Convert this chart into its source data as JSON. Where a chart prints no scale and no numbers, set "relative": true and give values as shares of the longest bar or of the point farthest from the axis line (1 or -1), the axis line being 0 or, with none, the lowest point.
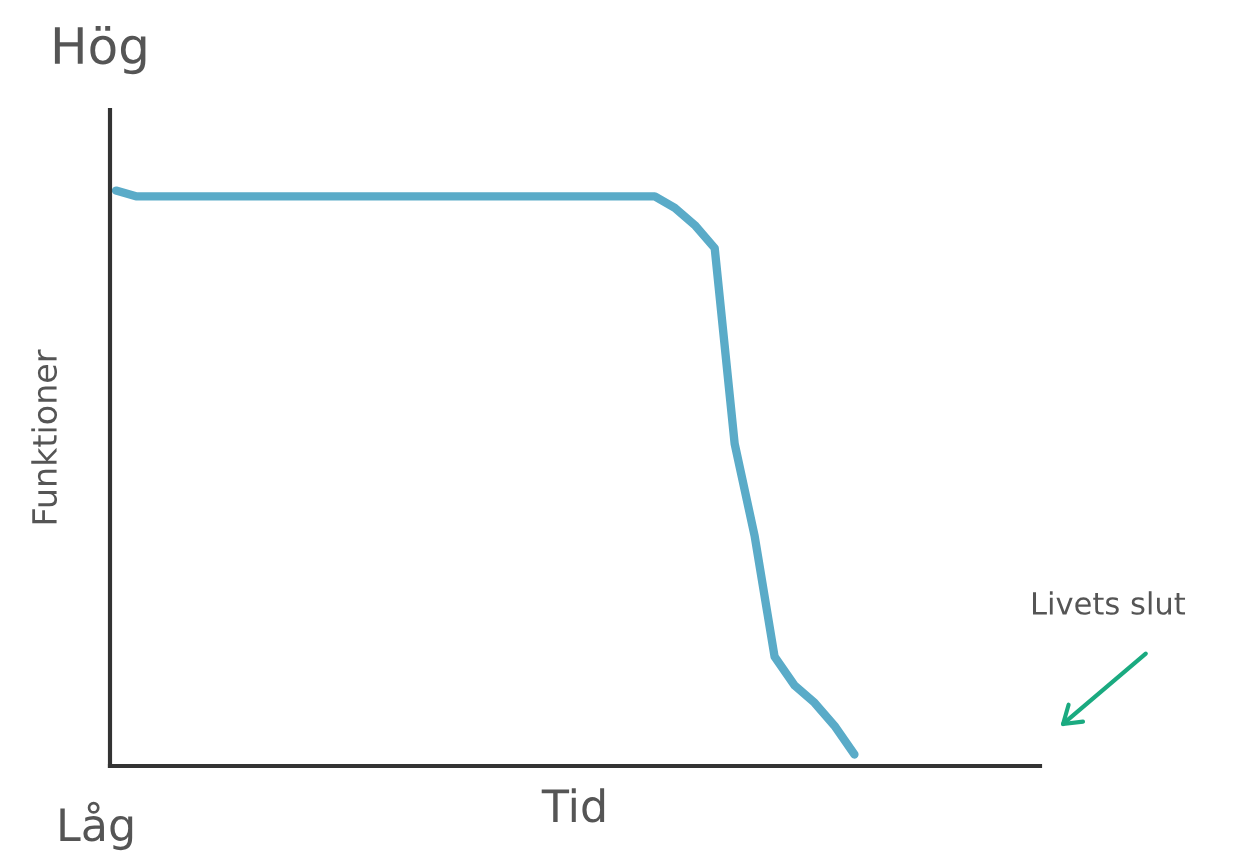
{
  "chart_data": {
    "type": "line",
    "relative": true,
    "xlabel": "Tid",
    "ylabel": "Funktioner",
    "annotations": [
      "Hög",
      "Låg",
      "Livets slut"
    ],
    "categories": [
      null,
      null,
      null,
      null,
      null,
      null,
      null,
      null,
      null,
      null,
      null,
      null,
      null,
      null,
      null,
      null,
      null,
      null,
      null,
      null,
      null,
      null,
      null,
      null,
      null,
      null,
      null,
      null,
      null,
      null,
      null,
      null,
      null,
      null,
      null,
      null,
      null,
      null
    ],
    "series": [
      {
        "color": "#5aabc8",
        "values": [
          1.0,
          0.99,
          0.99,
          0.99,
          0.99,
          0.99,
          0.99,
          0.99,
          0.99,
          0.99,
          0.99,
          0.99,
          0.99,
          0.99,
          0.99,
          0.99,
          0.99,
          0.99,
          0.99,
          0.99,
          0.99,
          0.99,
          0.99,
          0.99,
          0.99,
          0.99,
          0.99,
          0.99,
          0.97,
          0.94,
          0.9,
          0.56,
          0.4,
          0.19,
          0.14,
          0.11,
          0.07,
          0.02
        ]
      }
    ],
    "legend": false,
    "marker": "none",
    "line_style": "solid"
  }
}
